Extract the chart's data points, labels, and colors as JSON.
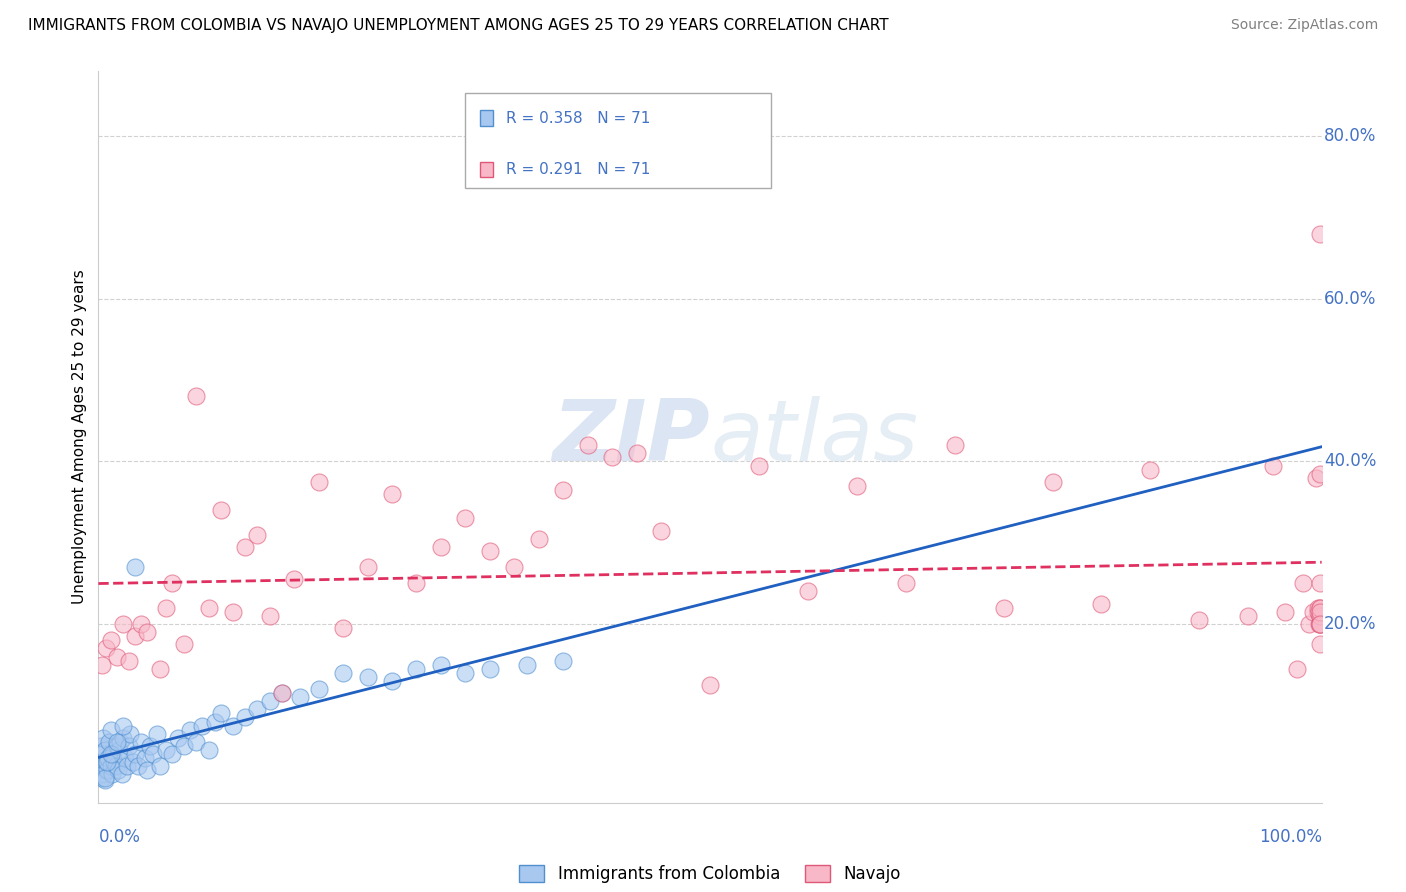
{
  "title": "IMMIGRANTS FROM COLOMBIA VS NAVAJO UNEMPLOYMENT AMONG AGES 25 TO 29 YEARS CORRELATION CHART",
  "source": "Source: ZipAtlas.com",
  "ylabel": "Unemployment Among Ages 25 to 29 years",
  "ytick_labels": [
    "20.0%",
    "40.0%",
    "60.0%",
    "80.0%"
  ],
  "ytick_values": [
    0.2,
    0.4,
    0.6,
    0.8
  ],
  "xlim": [
    0,
    1.0
  ],
  "ylim": [
    -0.02,
    0.88
  ],
  "legend_r_blue": "R = 0.358",
  "legend_n_blue": "N = 71",
  "legend_r_pink": "R = 0.291",
  "legend_n_pink": "N = 71",
  "legend_label_blue": "Immigrants from Colombia",
  "legend_label_pink": "Navajo",
  "blue_color": "#a8c8f0",
  "blue_edge_color": "#5090d0",
  "pink_color": "#f8b8c8",
  "pink_edge_color": "#e05878",
  "trend_blue_color": "#2060c0",
  "trend_pink_color": "#e03060",
  "watermark_color": "#c8d8f0",
  "grid_color": "#cccccc",
  "bg_color": "#ffffff",
  "blue_scatter_x": [
    0.001,
    0.002,
    0.002,
    0.003,
    0.003,
    0.004,
    0.004,
    0.005,
    0.005,
    0.006,
    0.007,
    0.008,
    0.009,
    0.01,
    0.01,
    0.011,
    0.012,
    0.013,
    0.014,
    0.015,
    0.016,
    0.017,
    0.018,
    0.019,
    0.02,
    0.022,
    0.023,
    0.025,
    0.026,
    0.028,
    0.03,
    0.032,
    0.035,
    0.038,
    0.04,
    0.042,
    0.045,
    0.048,
    0.05,
    0.055,
    0.06,
    0.065,
    0.07,
    0.075,
    0.08,
    0.085,
    0.09,
    0.095,
    0.1,
    0.11,
    0.12,
    0.13,
    0.14,
    0.15,
    0.165,
    0.18,
    0.2,
    0.22,
    0.24,
    0.26,
    0.28,
    0.3,
    0.32,
    0.35,
    0.38,
    0.005,
    0.007,
    0.01,
    0.015,
    0.02,
    0.03
  ],
  "blue_scatter_y": [
    0.02,
    0.025,
    0.05,
    0.01,
    0.04,
    0.015,
    0.06,
    0.008,
    0.045,
    0.03,
    0.02,
    0.035,
    0.055,
    0.025,
    0.07,
    0.015,
    0.04,
    0.03,
    0.025,
    0.05,
    0.02,
    0.045,
    0.055,
    0.015,
    0.06,
    0.035,
    0.025,
    0.05,
    0.065,
    0.03,
    0.04,
    0.025,
    0.055,
    0.035,
    0.02,
    0.05,
    0.04,
    0.065,
    0.025,
    0.045,
    0.04,
    0.06,
    0.05,
    0.07,
    0.055,
    0.075,
    0.045,
    0.08,
    0.09,
    0.075,
    0.085,
    0.095,
    0.105,
    0.115,
    0.11,
    0.12,
    0.14,
    0.135,
    0.13,
    0.145,
    0.15,
    0.14,
    0.145,
    0.15,
    0.155,
    0.01,
    0.03,
    0.04,
    0.055,
    0.075,
    0.27
  ],
  "pink_scatter_x": [
    0.003,
    0.006,
    0.01,
    0.015,
    0.02,
    0.025,
    0.03,
    0.035,
    0.04,
    0.05,
    0.055,
    0.06,
    0.07,
    0.08,
    0.09,
    0.1,
    0.11,
    0.12,
    0.13,
    0.14,
    0.15,
    0.16,
    0.18,
    0.2,
    0.22,
    0.24,
    0.26,
    0.28,
    0.3,
    0.32,
    0.34,
    0.36,
    0.38,
    0.4,
    0.42,
    0.44,
    0.46,
    0.5,
    0.54,
    0.58,
    0.62,
    0.66,
    0.7,
    0.74,
    0.78,
    0.82,
    0.86,
    0.9,
    0.94,
    0.96,
    0.97,
    0.98,
    0.985,
    0.99,
    0.993,
    0.995,
    0.997,
    0.997,
    0.998,
    0.999,
    0.999,
    0.999,
    0.999,
    0.999,
    0.999,
    0.999,
    0.999,
    0.999,
    0.999,
    0.999,
    0.999
  ],
  "pink_scatter_y": [
    0.15,
    0.17,
    0.18,
    0.16,
    0.2,
    0.155,
    0.185,
    0.2,
    0.19,
    0.145,
    0.22,
    0.25,
    0.175,
    0.48,
    0.22,
    0.34,
    0.215,
    0.295,
    0.31,
    0.21,
    0.115,
    0.255,
    0.375,
    0.195,
    0.27,
    0.36,
    0.25,
    0.295,
    0.33,
    0.29,
    0.27,
    0.305,
    0.365,
    0.42,
    0.405,
    0.41,
    0.315,
    0.125,
    0.395,
    0.24,
    0.37,
    0.25,
    0.42,
    0.22,
    0.375,
    0.225,
    0.39,
    0.205,
    0.21,
    0.395,
    0.215,
    0.145,
    0.25,
    0.2,
    0.215,
    0.38,
    0.215,
    0.22,
    0.2,
    0.21,
    0.25,
    0.2,
    0.21,
    0.22,
    0.2,
    0.385,
    0.22,
    0.215,
    0.175,
    0.2,
    0.68
  ]
}
